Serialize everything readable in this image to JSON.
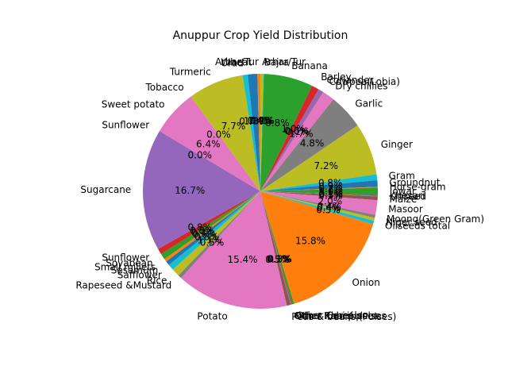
{
  "chart_data": {
    "type": "pie",
    "title": "Anuppur Crop Yield Distribution",
    "startangle_deg": 90,
    "direction": "clockwise",
    "pct_format": "%1.1f%%",
    "slices": [
      {
        "label": "Arhar/Tur",
        "value": 0.4,
        "color": "#bcbd22"
      },
      {
        "label": "Bajra",
        "value": 0.1,
        "color": "#17becf"
      },
      {
        "label": "Banana",
        "value": 6.7,
        "color": "#2ca02c"
      },
      {
        "label": "Barley",
        "value": 1.0,
        "color": "#d62728"
      },
      {
        "label": "Coriander",
        "value": 0.6,
        "color": "#9467bd"
      },
      {
        "label": "Cowpea(Lobia)",
        "value": 0.1,
        "color": "#8c564b"
      },
      {
        "label": "Dry chillies",
        "value": 1.7,
        "color": "#e377c2"
      },
      {
        "label": "Garlic",
        "value": 4.8,
        "color": "#7f7f7f"
      },
      {
        "label": "Ginger",
        "value": 7.1,
        "color": "#bcbd22"
      },
      {
        "label": "Gram",
        "value": 0.8,
        "color": "#17becf"
      },
      {
        "label": "Groundnut",
        "value": 0.9,
        "color": "#1f77b4"
      },
      {
        "label": "Horse-gram",
        "value": 0.1,
        "color": "#ff7f0e"
      },
      {
        "label": "Jowar",
        "value": 1.0,
        "color": "#2ca02c"
      },
      {
        "label": "Khesari",
        "value": 0.1,
        "color": "#d62728"
      },
      {
        "label": "Linseed",
        "value": 0.1,
        "color": "#9467bd"
      },
      {
        "label": "Maize",
        "value": 0.5,
        "color": "#8c564b"
      },
      {
        "label": "Masoor",
        "value": 2.0,
        "color": "#e377c2"
      },
      {
        "label": "Moong(Green Gram)",
        "value": 0.4,
        "color": "#7f7f7f"
      },
      {
        "label": "Niger seed",
        "value": 0.4,
        "color": "#bcbd22"
      },
      {
        "label": "Oilseeds total",
        "value": 0.5,
        "color": "#17becf"
      },
      {
        "label": "Onion",
        "value": 15.7,
        "color": "#ff7f0e"
      },
      {
        "label": "Other Cereals",
        "value": 0.3,
        "color": "#2ca02c"
      },
      {
        "label": "Other Kharif pulses",
        "value": 0.1,
        "color": "#d62728"
      },
      {
        "label": "Other Rabi pulses",
        "value": 0.1,
        "color": "#9467bd"
      },
      {
        "label": "Peas & beans (Pulses)",
        "value": 0.5,
        "color": "#8c564b"
      },
      {
        "label": "Potato",
        "value": 15.3,
        "color": "#e377c2"
      },
      {
        "label": "Rapeseed &Mustard",
        "value": 0.5,
        "color": "#7f7f7f"
      },
      {
        "label": "Rice",
        "value": 1.1,
        "color": "#bcbd22"
      },
      {
        "label": "Safflower",
        "value": 0.8,
        "color": "#17becf"
      },
      {
        "label": "Sesamum",
        "value": 0.6,
        "color": "#1f77b4"
      },
      {
        "label": "Small millets",
        "value": 0.4,
        "color": "#ff7f0e"
      },
      {
        "label": "Soyabean",
        "value": 0.8,
        "color": "#2ca02c"
      },
      {
        "label": "Sunflower",
        "value": 0.8,
        "color": "#d62728"
      },
      {
        "label": "Sugarcane",
        "value": 16.6,
        "color": "#9467bd"
      },
      {
        "label": "Sunflower",
        "value": 0.0,
        "color": "#8c564b"
      },
      {
        "label": "Sweet potato",
        "value": 6.3,
        "color": "#e377c2"
      },
      {
        "label": "Tobacco",
        "value": 0.0,
        "color": "#7f7f7f"
      },
      {
        "label": "Turmeric",
        "value": 7.6,
        "color": "#bcbd22"
      },
      {
        "label": "Urad",
        "value": 0.7,
        "color": "#17becf"
      },
      {
        "label": "Wheat",
        "value": 1.3,
        "color": "#1f77b4"
      },
      {
        "label": "Arhar/Tur",
        "value": 0.4,
        "color": "#ff7f0e"
      }
    ]
  }
}
